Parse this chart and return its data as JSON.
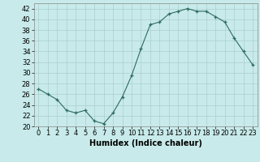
{
  "x": [
    0,
    1,
    2,
    3,
    4,
    5,
    6,
    7,
    8,
    9,
    10,
    11,
    12,
    13,
    14,
    15,
    16,
    17,
    18,
    19,
    20,
    21,
    22,
    23
  ],
  "y": [
    27,
    26,
    25,
    23,
    22.5,
    23,
    21,
    20.5,
    22.5,
    25.5,
    29.5,
    34.5,
    39,
    39.5,
    41,
    41.5,
    42,
    41.5,
    41.5,
    40.5,
    39.5,
    36.5,
    34,
    31.5
  ],
  "xlabel": "Humidex (Indice chaleur)",
  "ylim": [
    20,
    43
  ],
  "xlim": [
    -0.5,
    23.5
  ],
  "yticks": [
    20,
    22,
    24,
    26,
    28,
    30,
    32,
    34,
    36,
    38,
    40,
    42
  ],
  "xticks": [
    0,
    1,
    2,
    3,
    4,
    5,
    6,
    7,
    8,
    9,
    10,
    11,
    12,
    13,
    14,
    15,
    16,
    17,
    18,
    19,
    20,
    21,
    22,
    23
  ],
  "line_color": "#2e6b5e",
  "bg_color": "#c8eaea",
  "grid_color": "#aacece",
  "label_fontsize": 7,
  "tick_fontsize": 6
}
